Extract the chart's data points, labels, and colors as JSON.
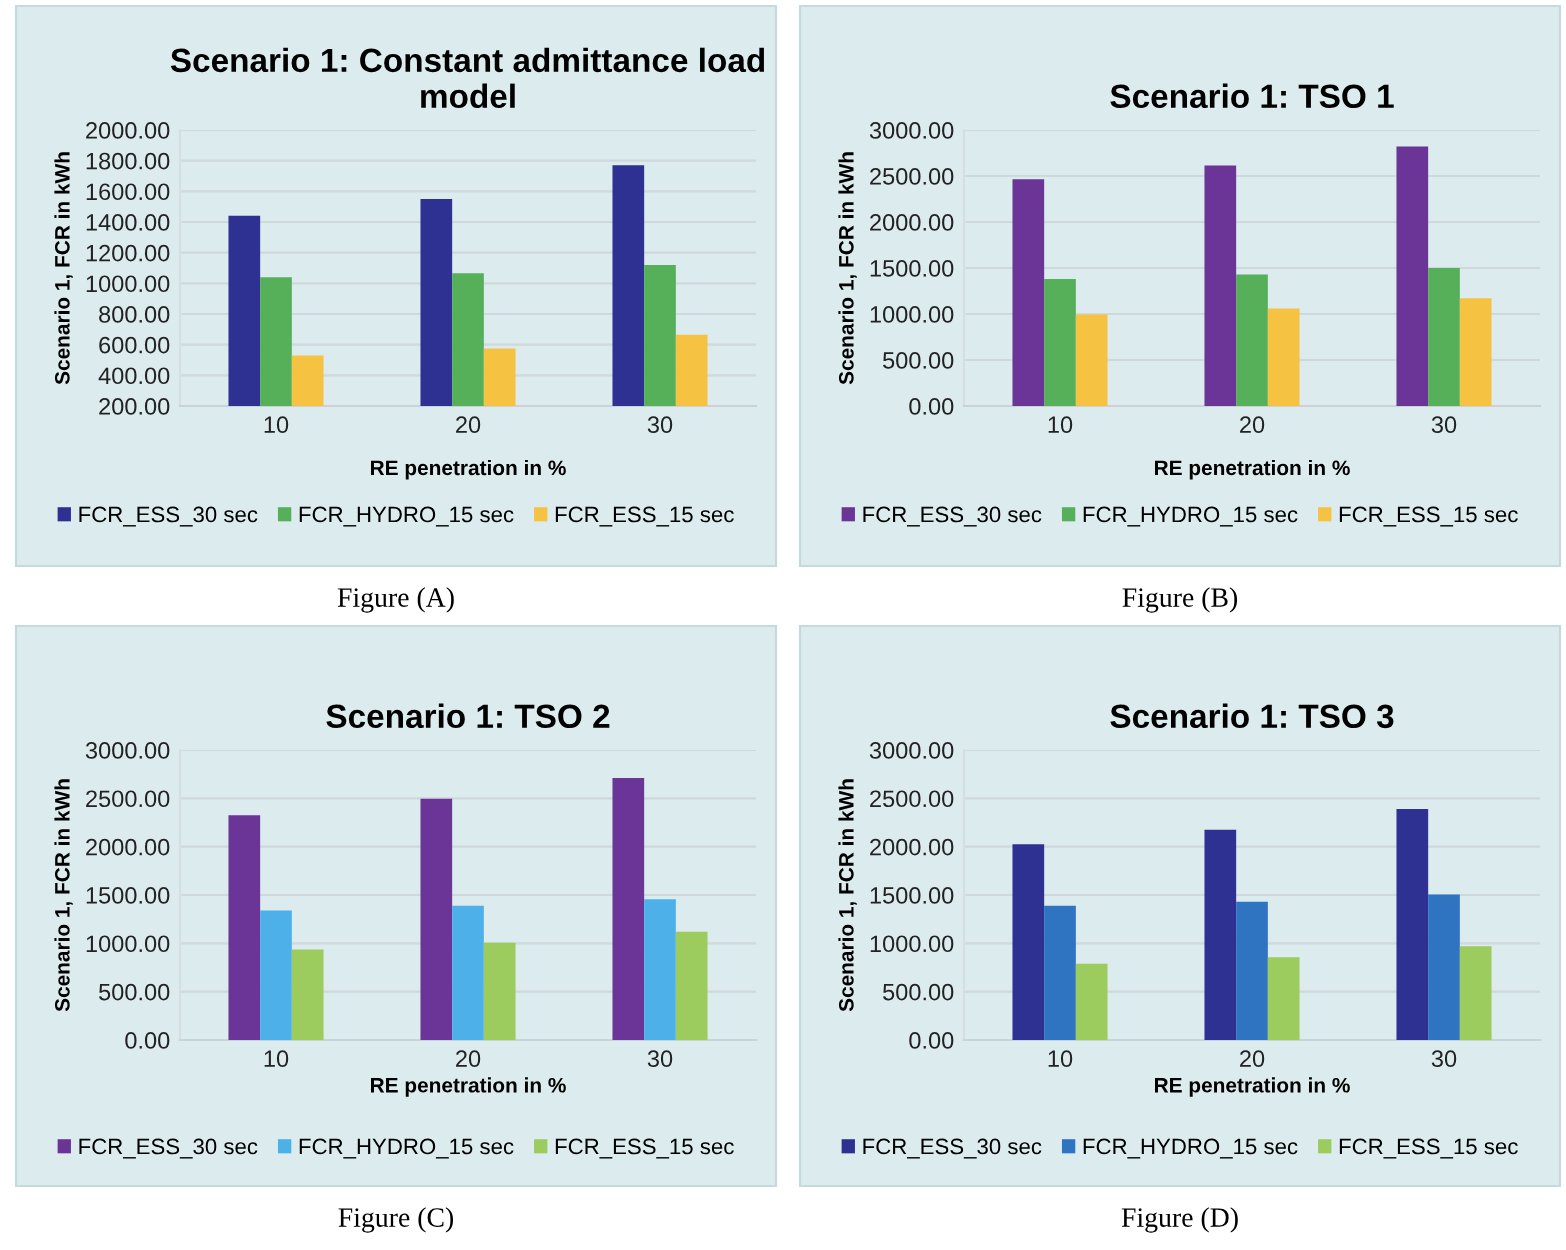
{
  "chart_data": [
    {
      "type": "bar",
      "title": "Scenario 1: Constant admittance load model",
      "xlabel": "RE penetration in %",
      "ylabel": "Scenario 1, FCR in kWh",
      "categories": [
        "10",
        "20",
        "30"
      ],
      "series": [
        {
          "name": "FCR_ESS_30 sec",
          "color": "#2e3192",
          "values": [
            1440,
            1550,
            1770
          ]
        },
        {
          "name": "FCR_HYDRO_15 sec",
          "color": "#56b05a",
          "values": [
            1040,
            1065,
            1120
          ]
        },
        {
          "name": "FCR_ESS_15 sec",
          "color": "#f5c242",
          "values": [
            530,
            575,
            665
          ]
        }
      ],
      "ylim": [
        200,
        2000
      ],
      "yticks": [
        {
          "value": 200,
          "label": "200.00"
        },
        {
          "value": 400,
          "label": "400.00"
        },
        {
          "value": 600,
          "label": "600.00"
        },
        {
          "value": 800,
          "label": "800.00"
        },
        {
          "value": 1000,
          "label": "1000.00"
        },
        {
          "value": 1200,
          "label": "1200.00"
        },
        {
          "value": 1400,
          "label": "1400.00"
        },
        {
          "value": 1600,
          "label": "1600.00"
        },
        {
          "value": 1800,
          "label": "1800.00"
        },
        {
          "value": 2000,
          "label": "2000.00"
        }
      ],
      "grid": "y",
      "legend": "bottom",
      "annotations": [
        "Figure (A)"
      ]
    },
    {
      "type": "bar",
      "title": "Scenario 1: TSO 1",
      "xlabel": "RE penetration in %",
      "ylabel": "Scenario 1, FCR in kWh",
      "categories": [
        "10",
        "20",
        "30"
      ],
      "series": [
        {
          "name": "FCR_ESS_30 sec",
          "color": "#6a3596",
          "values": [
            2465,
            2615,
            2820
          ]
        },
        {
          "name": "FCR_HYDRO_15 sec",
          "color": "#56b05a",
          "values": [
            1380,
            1430,
            1500
          ]
        },
        {
          "name": "FCR_ESS_15 sec",
          "color": "#f5c242",
          "values": [
            995,
            1060,
            1170
          ]
        }
      ],
      "ylim": [
        0,
        3000
      ],
      "yticks": [
        {
          "value": 0,
          "label": "0.00"
        },
        {
          "value": 500,
          "label": "500.00"
        },
        {
          "value": 1000,
          "label": "1000.00"
        },
        {
          "value": 1500,
          "label": "1500.00"
        },
        {
          "value": 2000,
          "label": "2000.00"
        },
        {
          "value": 2500,
          "label": "2500.00"
        },
        {
          "value": 3000,
          "label": "3000.00"
        }
      ],
      "grid": "y",
      "legend": "bottom",
      "annotations": [
        "Figure (B)"
      ]
    },
    {
      "type": "bar",
      "title": "Scenario 1: TSO 2",
      "xlabel": "RE penetration in %",
      "ylabel": "Scenario 1, FCR in kWh",
      "categories": [
        "10",
        "20",
        "30"
      ],
      "series": [
        {
          "name": "FCR_ESS_30 sec",
          "color": "#6a3596",
          "values": [
            2325,
            2495,
            2710
          ]
        },
        {
          "name": "FCR_HYDRO_15 sec",
          "color": "#4db0e8",
          "values": [
            1340,
            1390,
            1455
          ]
        },
        {
          "name": "FCR_ESS_15 sec",
          "color": "#9ccc5e",
          "values": [
            935,
            1005,
            1120
          ]
        }
      ],
      "ylim": [
        0,
        3000
      ],
      "yticks": [
        {
          "value": 0,
          "label": "0.00"
        },
        {
          "value": 500,
          "label": "500.00"
        },
        {
          "value": 1000,
          "label": "1000.00"
        },
        {
          "value": 1500,
          "label": "1500.00"
        },
        {
          "value": 2000,
          "label": "2000.00"
        },
        {
          "value": 2500,
          "label": "2500.00"
        },
        {
          "value": 3000,
          "label": "3000.00"
        }
      ],
      "grid": "y",
      "legend": "bottom",
      "annotations": [
        "Figure (C)"
      ]
    },
    {
      "type": "bar",
      "title": "Scenario 1: TSO 3",
      "xlabel": "RE penetration in %",
      "ylabel": "Scenario 1, FCR in kWh",
      "categories": [
        "10",
        "20",
        "30"
      ],
      "series": [
        {
          "name": "FCR_ESS_30 sec",
          "color": "#2e3192",
          "values": [
            2025,
            2175,
            2390
          ]
        },
        {
          "name": "FCR_HYDRO_15 sec",
          "color": "#2f74c0",
          "values": [
            1390,
            1430,
            1505
          ]
        },
        {
          "name": "FCR_ESS_15 sec",
          "color": "#9ccc5e",
          "values": [
            790,
            855,
            970
          ]
        }
      ],
      "ylim": [
        0,
        3000
      ],
      "yticks": [
        {
          "value": 0,
          "label": "0.00"
        },
        {
          "value": 500,
          "label": "500.00"
        },
        {
          "value": 1000,
          "label": "1000.00"
        },
        {
          "value": 1500,
          "label": "1500.00"
        },
        {
          "value": 2000,
          "label": "2000.00"
        },
        {
          "value": 2500,
          "label": "2500.00"
        },
        {
          "value": 3000,
          "label": "3000.00"
        }
      ],
      "grid": "y",
      "legend": "bottom",
      "annotations": [
        "Figure (D)"
      ]
    }
  ]
}
